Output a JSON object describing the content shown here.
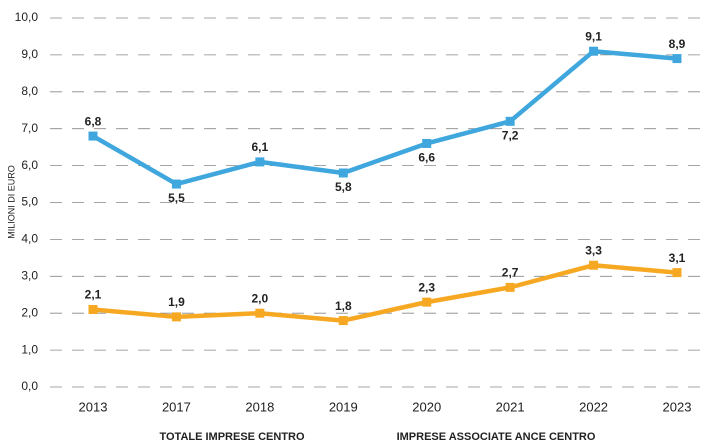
{
  "chart_data": {
    "type": "line",
    "y_label": "MILIONI DI EURO",
    "categories": [
      "2013",
      "2017",
      "2018",
      "2019",
      "2020",
      "2021",
      "2022",
      "2023"
    ],
    "series": [
      {
        "name": "TOTALE IMPRESE CENTRO",
        "color": "#3fa7dd",
        "values": [
          6.8,
          5.5,
          6.1,
          5.8,
          6.6,
          7.2,
          9.1,
          8.9
        ],
        "value_labels": [
          "6,8",
          "5,5",
          "6,1",
          "5,8",
          "6,6",
          "7,2",
          "9,1",
          "8,9"
        ]
      },
      {
        "name": "IMPRESE ASSOCIATE ANCE CENTRO",
        "color": "#f7a823",
        "values": [
          2.1,
          1.9,
          2.0,
          1.8,
          2.3,
          2.7,
          3.3,
          3.1
        ],
        "value_labels": [
          "2,1",
          "1,9",
          "2,0",
          "1,8",
          "2,3",
          "2,7",
          "3,3",
          "3,1"
        ]
      }
    ],
    "ylim": [
      0,
      10
    ],
    "yticks": [
      {
        "value": 0,
        "label": "0,0"
      },
      {
        "value": 1,
        "label": "1,0"
      },
      {
        "value": 2,
        "label": "2,0"
      },
      {
        "value": 3,
        "label": "3,0"
      },
      {
        "value": 4,
        "label": "4,0"
      },
      {
        "value": 5,
        "label": "5,0"
      },
      {
        "value": 6,
        "label": "6,0"
      },
      {
        "value": 7,
        "label": "7,0"
      },
      {
        "value": 8,
        "label": "8,0"
      },
      {
        "value": 9,
        "label": "9,0"
      },
      {
        "value": 10,
        "label": "10,0"
      }
    ],
    "grid": true
  }
}
